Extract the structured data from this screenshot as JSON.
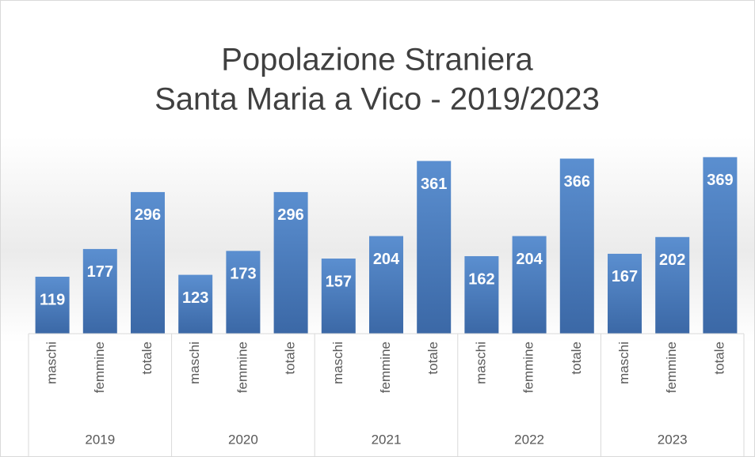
{
  "chart_data": {
    "type": "bar",
    "title": [
      "Popolazione Straniera",
      "Santa Maria a Vico - 2019/2023"
    ],
    "groups": [
      "2019",
      "2020",
      "2021",
      "2022",
      "2023"
    ],
    "categories": [
      "maschi",
      "femmine",
      "totale",
      "maschi",
      "femmine",
      "totale",
      "maschi",
      "femmine",
      "totale",
      "maschi",
      "femmine",
      "totale",
      "maschi",
      "femmine",
      "totale"
    ],
    "values": [
      119,
      177,
      296,
      123,
      173,
      296,
      157,
      204,
      361,
      162,
      204,
      366,
      167,
      202,
      369
    ],
    "color": "#4a7ebb"
  }
}
